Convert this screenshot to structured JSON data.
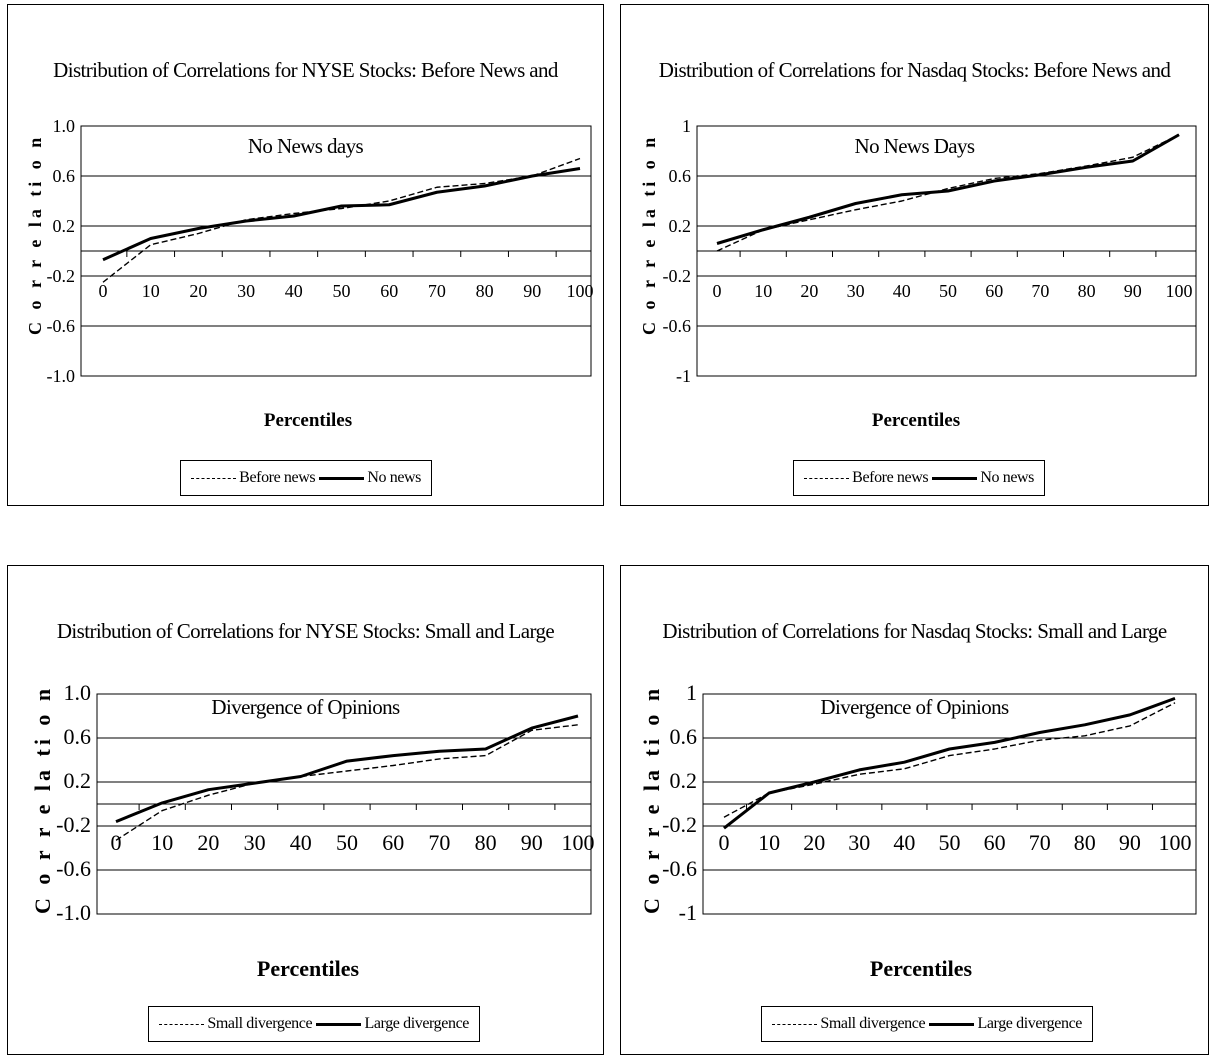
{
  "chart_data": [
    {
      "type": "line",
      "title": "Distribution of Correlations for NYSE Stocks: Before News and No News days",
      "title_lines": [
        "Distribution of Correlations for NYSE Stocks: Before News and",
        "No News days"
      ],
      "xlabel": "Percentiles",
      "ylabel": "C o r r e la ti o n",
      "categories": [
        "0",
        "10",
        "20",
        "30",
        "40",
        "50",
        "60",
        "70",
        "80",
        "90",
        "100"
      ],
      "yticks": [
        "1.0",
        "0.6",
        "0.2",
        "-0.2",
        "-0.6",
        "-1.0"
      ],
      "ylim": [
        -1,
        1
      ],
      "series": [
        {
          "name": "Before news",
          "style": "dashed",
          "values": [
            -0.25,
            0.05,
            0.14,
            0.25,
            0.3,
            0.34,
            0.4,
            0.51,
            0.54,
            0.6,
            0.74
          ]
        },
        {
          "name": "No news",
          "style": "solid",
          "values": [
            -0.07,
            0.1,
            0.18,
            0.24,
            0.28,
            0.36,
            0.37,
            0.47,
            0.52,
            0.6,
            0.66
          ]
        }
      ],
      "legend_position": "bottom",
      "grid": "horizontal major"
    },
    {
      "type": "line",
      "title": "Distribution of Correlations for Nasdaq Stocks: Before News and No News Days",
      "title_lines": [
        "Distribution of Correlations for Nasdaq Stocks: Before News and",
        "No News Days"
      ],
      "xlabel": "Percentiles",
      "ylabel": "C o r r e la ti o n",
      "categories": [
        "0",
        "10",
        "20",
        "30",
        "40",
        "50",
        "60",
        "70",
        "80",
        "90",
        "100"
      ],
      "yticks": [
        "1",
        "0.6",
        "0.2",
        "-0.2",
        "-0.6",
        "-1"
      ],
      "ylim": [
        -1,
        1
      ],
      "series": [
        {
          "name": "Before news",
          "style": "dashed",
          "values": [
            0.0,
            0.17,
            0.25,
            0.33,
            0.4,
            0.5,
            0.58,
            0.62,
            0.68,
            0.75,
            0.93
          ]
        },
        {
          "name": "No news",
          "style": "solid",
          "values": [
            0.06,
            0.17,
            0.27,
            0.38,
            0.45,
            0.48,
            0.56,
            0.61,
            0.67,
            0.72,
            0.93
          ]
        }
      ],
      "legend_position": "bottom",
      "grid": "horizontal major"
    },
    {
      "type": "line",
      "title": "Distribution of Correlations for NYSE Stocks: Small and Large Divergence of Opinions",
      "title_lines": [
        "Distribution of Correlations for NYSE Stocks: Small and Large",
        "Divergence of Opinions"
      ],
      "xlabel": "Percentiles",
      "ylabel": "C o r r e la ti o n",
      "categories": [
        "0",
        "10",
        "20",
        "30",
        "40",
        "50",
        "60",
        "70",
        "80",
        "90",
        "100"
      ],
      "yticks": [
        "1.0",
        "0.6",
        "0.2",
        "-0.2",
        "-0.6",
        "-1.0"
      ],
      "ylim": [
        -1,
        1
      ],
      "series": [
        {
          "name": "Small divergence",
          "style": "dashed",
          "values": [
            -0.33,
            -0.06,
            0.08,
            0.19,
            0.25,
            0.3,
            0.35,
            0.41,
            0.44,
            0.67,
            0.72
          ]
        },
        {
          "name": "Large divergence",
          "style": "solid",
          "values": [
            -0.16,
            0.01,
            0.13,
            0.19,
            0.25,
            0.39,
            0.44,
            0.48,
            0.5,
            0.69,
            0.8
          ]
        }
      ],
      "legend_position": "bottom",
      "grid": "horizontal major"
    },
    {
      "type": "line",
      "title": "Distribution of Correlations for Nasdaq Stocks: Small and Large Divergence of Opinions",
      "title_lines": [
        "Distribution of Correlations for Nasdaq Stocks: Small and Large",
        "Divergence of Opinions"
      ],
      "xlabel": "Percentiles",
      "ylabel": "C o r r e la ti o n",
      "categories": [
        "0",
        "10",
        "20",
        "30",
        "40",
        "50",
        "60",
        "70",
        "80",
        "90",
        "100"
      ],
      "yticks": [
        "1",
        "0.6",
        "0.2",
        "-0.2",
        "-0.6",
        "-1"
      ],
      "ylim": [
        -1,
        1
      ],
      "series": [
        {
          "name": "Small divergence",
          "style": "dashed",
          "values": [
            -0.12,
            0.1,
            0.18,
            0.27,
            0.32,
            0.44,
            0.5,
            0.58,
            0.62,
            0.71,
            0.92
          ]
        },
        {
          "name": "Large divergence",
          "style": "solid",
          "values": [
            -0.22,
            0.1,
            0.2,
            0.31,
            0.38,
            0.5,
            0.56,
            0.65,
            0.72,
            0.81,
            0.96
          ]
        }
      ],
      "legend_position": "bottom",
      "grid": "horizontal major"
    }
  ]
}
